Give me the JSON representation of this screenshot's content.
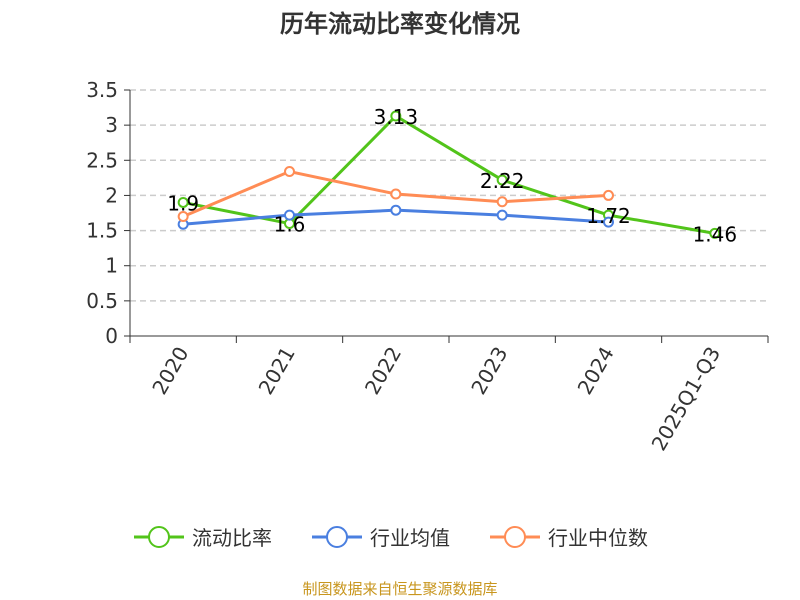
{
  "chart_data": {
    "type": "line",
    "title": "历年流动比率变化情况",
    "categories": [
      "2020",
      "2021",
      "2022",
      "2023",
      "2024",
      "2025Q1-Q3"
    ],
    "ylim": [
      0,
      3.5
    ],
    "yticks": [
      "0",
      "0.5",
      "1",
      "1.5",
      "2",
      "2.5",
      "3",
      "3.5"
    ],
    "grid": true,
    "legend_position": "bottom",
    "series": [
      {
        "name": "流动比率",
        "color": "#52c41a",
        "values": [
          1.9,
          1.6,
          3.13,
          2.22,
          1.72,
          1.46
        ],
        "labels": [
          "1.9",
          "1.6",
          "3.13",
          "2.22",
          "1.72",
          "1.46"
        ]
      },
      {
        "name": "行业均值",
        "color": "#4a7fe0",
        "values": [
          1.59,
          1.72,
          1.79,
          1.72,
          1.62,
          null
        ]
      },
      {
        "name": "行业中位数",
        "color": "#ff8c55",
        "values": [
          1.7,
          2.34,
          2.02,
          1.91,
          2.0,
          null
        ]
      }
    ]
  },
  "source": "制图数据来自恒生聚源数据库"
}
